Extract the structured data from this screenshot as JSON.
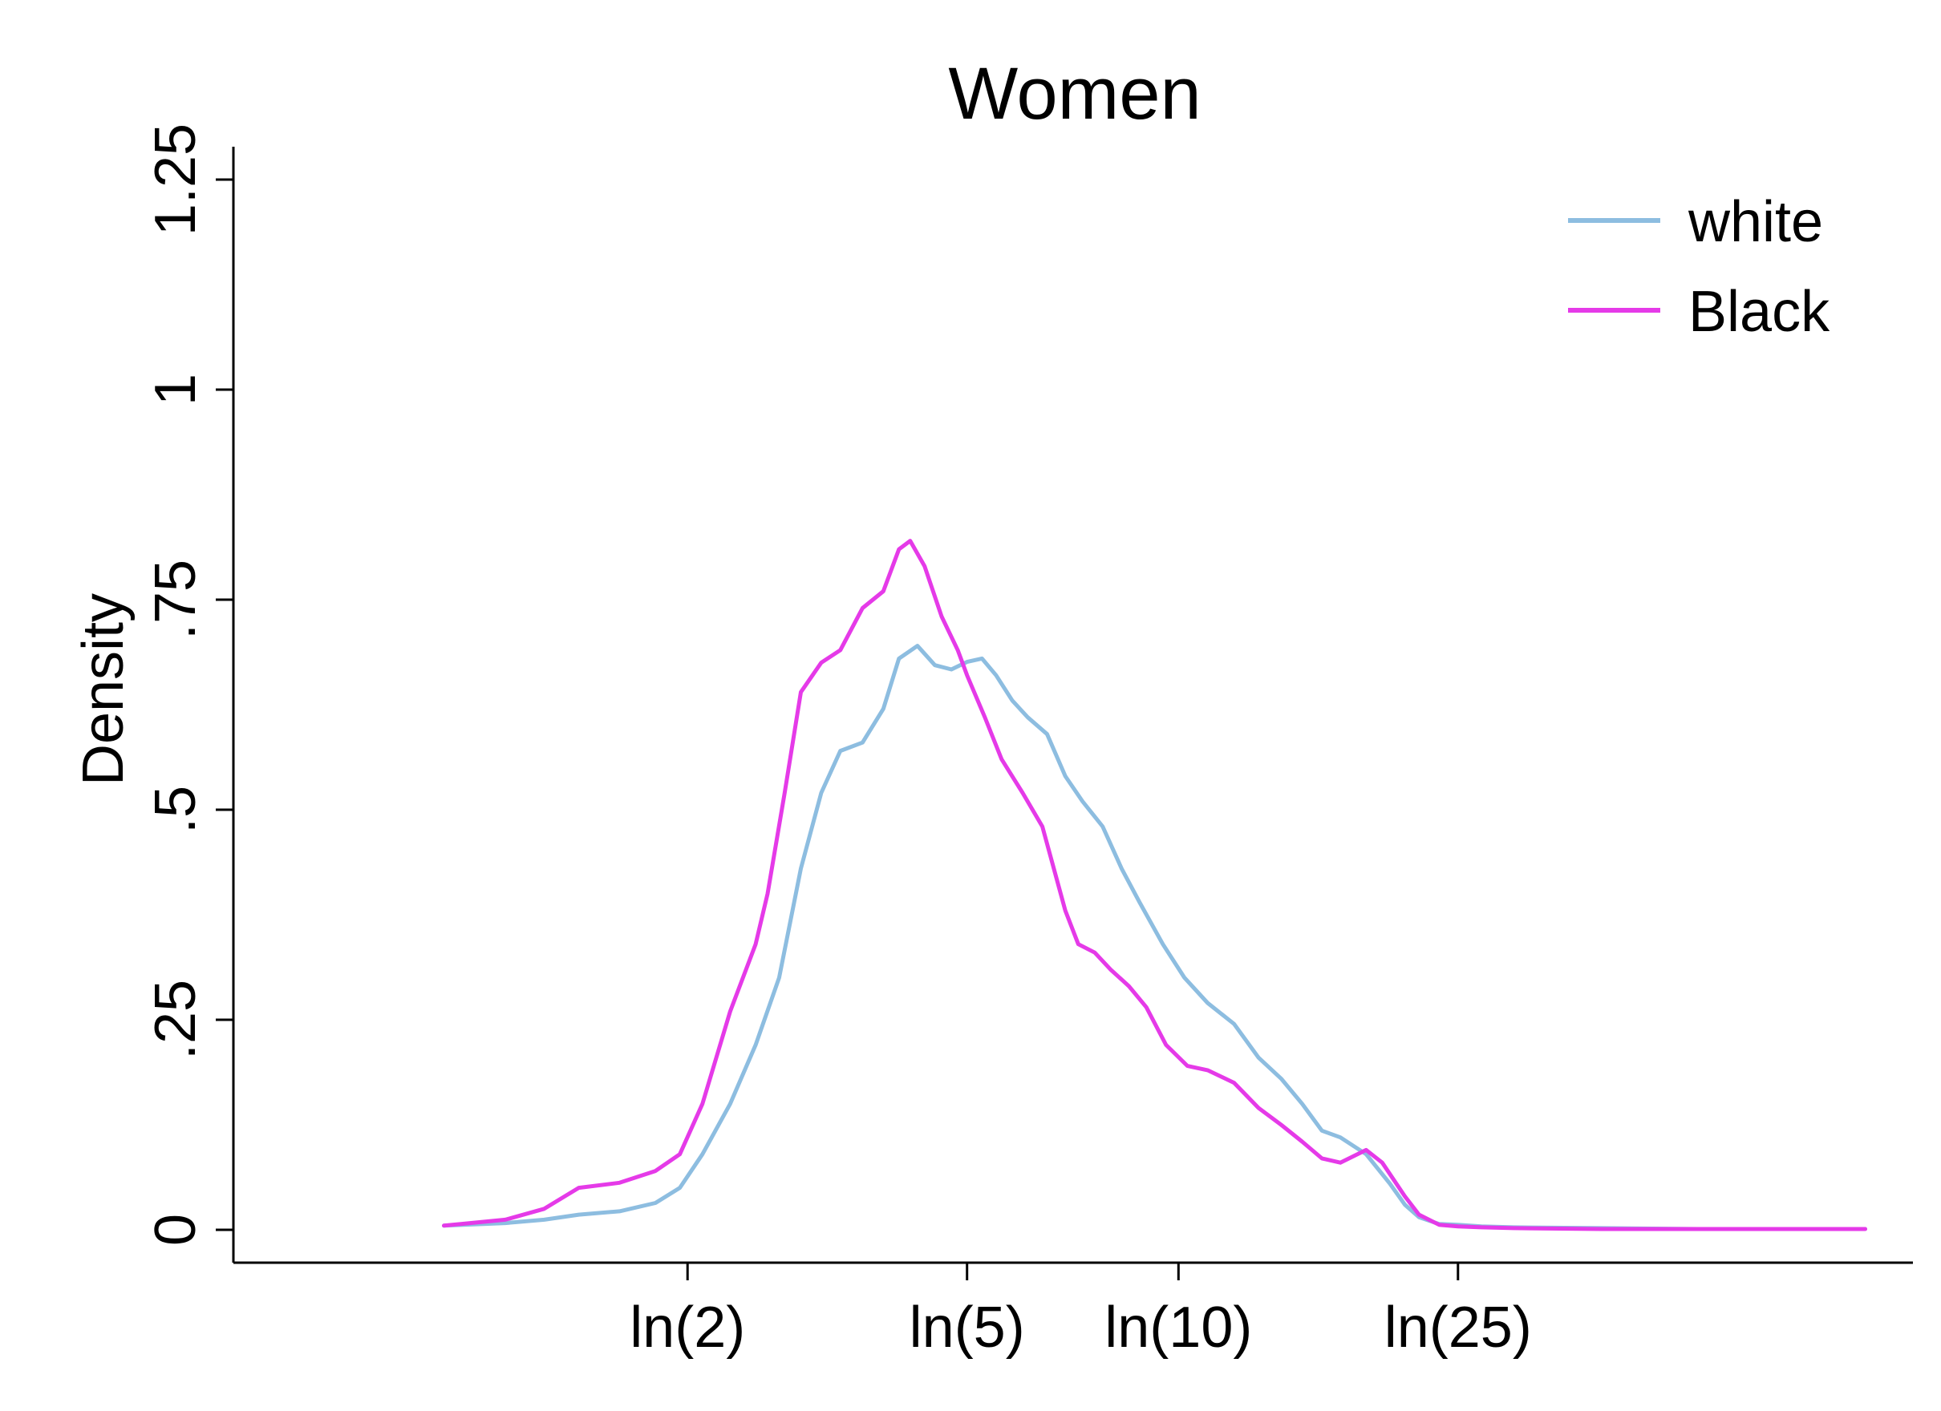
{
  "chart_data": {
    "type": "line",
    "title": "Women",
    "xlabel": "",
    "ylabel": "Density",
    "x_scale": "log",
    "xlim": [
      0.5,
      100
    ],
    "ylim": [
      -0.04,
      1.29
    ],
    "x_ticks": [
      {
        "value": 2,
        "label": "ln(2)"
      },
      {
        "value": 5,
        "label": "ln(5)"
      },
      {
        "value": 10,
        "label": "ln(10)"
      },
      {
        "value": 25,
        "label": "ln(25)"
      }
    ],
    "y_ticks": [
      {
        "value": 0,
        "label": "0"
      },
      {
        "value": 0.25,
        "label": ".25"
      },
      {
        "value": 0.5,
        "label": ".5"
      },
      {
        "value": 0.75,
        "label": ".75"
      },
      {
        "value": 1,
        "label": "1"
      },
      {
        "value": 1.25,
        "label": "1.25"
      }
    ],
    "grid": false,
    "legend_position": "top-right",
    "series": [
      {
        "name": "white",
        "color": "#8dbde0",
        "x": [
          0.9,
          1.1,
          1.25,
          1.4,
          1.6,
          1.8,
          1.95,
          2.1,
          2.3,
          2.5,
          2.7,
          2.9,
          3.1,
          3.3,
          3.55,
          3.8,
          4.0,
          4.25,
          4.5,
          4.75,
          5.0,
          5.25,
          5.5,
          5.8,
          6.1,
          6.5,
          6.9,
          7.3,
          7.8,
          8.3,
          8.8,
          9.5,
          10.2,
          11.0,
          12.0,
          13.0,
          14.0,
          15.0,
          16.0,
          17.0,
          18.5,
          20.0,
          21.0,
          22.0,
          23.5,
          25.0,
          27.0,
          30.0,
          40.0,
          55.0,
          75.0,
          95.0
        ],
        "y": [
          0.005,
          0.008,
          0.012,
          0.018,
          0.022,
          0.032,
          0.05,
          0.09,
          0.15,
          0.22,
          0.3,
          0.43,
          0.52,
          0.57,
          0.58,
          0.62,
          0.68,
          0.695,
          0.672,
          0.667,
          0.676,
          0.68,
          0.66,
          0.63,
          0.61,
          0.59,
          0.54,
          0.51,
          0.48,
          0.43,
          0.39,
          0.34,
          0.3,
          0.27,
          0.245,
          0.205,
          0.18,
          0.15,
          0.118,
          0.11,
          0.09,
          0.055,
          0.03,
          0.015,
          0.007,
          0.006,
          0.004,
          0.003,
          0.002,
          0.001,
          0.001,
          0.001
        ]
      },
      {
        "name": "Black",
        "color": "#e53ae8",
        "x": [
          0.9,
          1.1,
          1.25,
          1.4,
          1.6,
          1.8,
          1.95,
          2.1,
          2.3,
          2.5,
          2.6,
          2.75,
          2.9,
          3.1,
          3.3,
          3.55,
          3.8,
          4.0,
          4.15,
          4.35,
          4.6,
          4.85,
          5.0,
          5.3,
          5.6,
          6.0,
          6.4,
          6.9,
          7.2,
          7.6,
          8.0,
          8.5,
          9.0,
          9.6,
          10.3,
          11.0,
          12.0,
          13.0,
          14.0,
          15.0,
          16.0,
          17.0,
          18.5,
          19.5,
          21.0,
          22.0,
          23.5,
          25.0,
          27.0,
          30.0,
          40.0,
          55.0,
          75.0,
          95.0
        ],
        "y": [
          0.005,
          0.012,
          0.025,
          0.05,
          0.056,
          0.07,
          0.09,
          0.15,
          0.26,
          0.34,
          0.4,
          0.52,
          0.64,
          0.675,
          0.69,
          0.74,
          0.76,
          0.81,
          0.82,
          0.79,
          0.73,
          0.69,
          0.66,
          0.61,
          0.56,
          0.52,
          0.48,
          0.38,
          0.34,
          0.33,
          0.31,
          0.29,
          0.265,
          0.22,
          0.195,
          0.19,
          0.175,
          0.145,
          0.125,
          0.105,
          0.085,
          0.08,
          0.095,
          0.08,
          0.04,
          0.018,
          0.006,
          0.004,
          0.003,
          0.002,
          0.001,
          0.001,
          0.001,
          0.001
        ]
      }
    ]
  }
}
